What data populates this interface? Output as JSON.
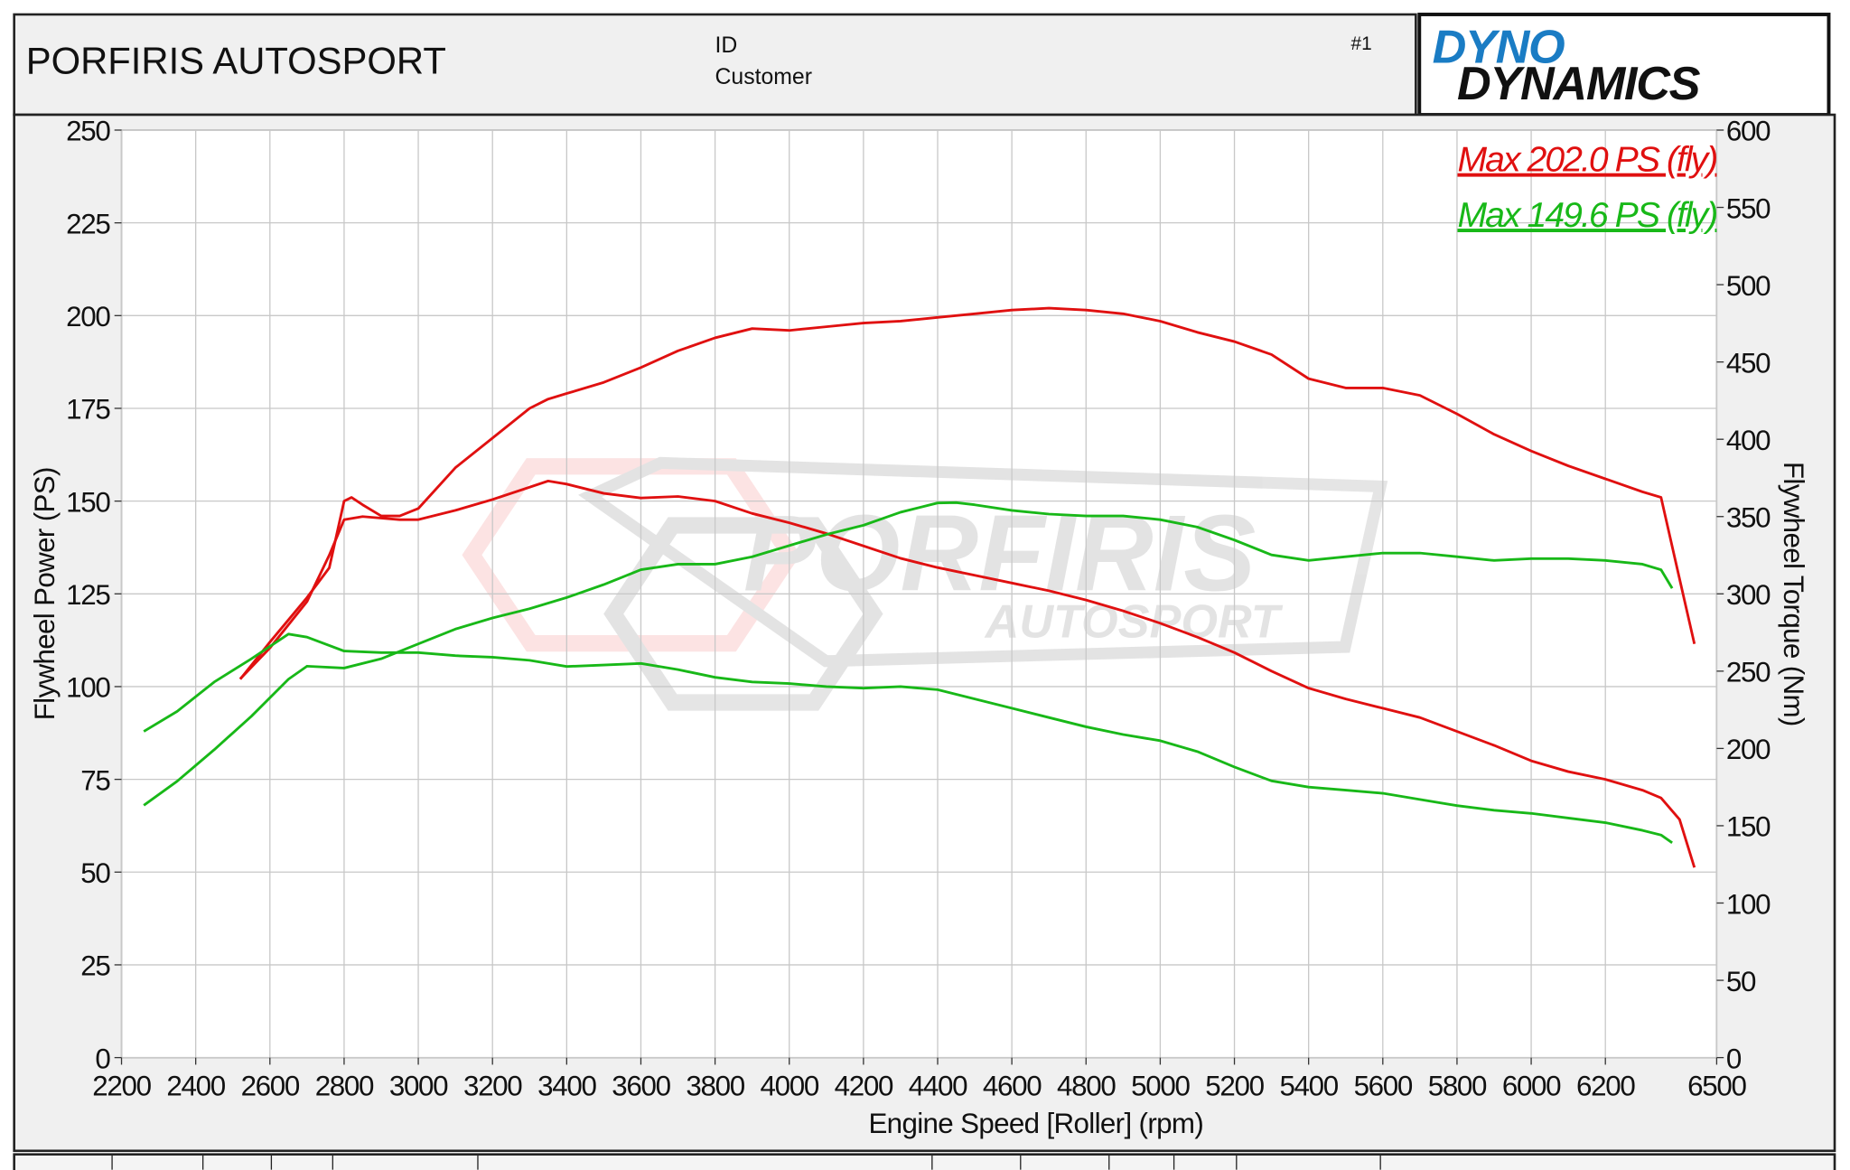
{
  "header": {
    "title": "PORFIRIS AUTOSPORT",
    "id_label": "ID",
    "customer_label": "Customer",
    "run": "#1"
  },
  "logo": {
    "line1": "DYNO",
    "line2": "DYNAMICS"
  },
  "watermark": {
    "line1": "PORFIRIS",
    "line2": "AUTOSPORT"
  },
  "chart_data": {
    "type": "line",
    "x_label": "Engine Speed [Roller] (rpm)",
    "y_label": "Flywheel Power (PS)",
    "y2_label": "Flywheel Torque (Nm)",
    "xlim": [
      2200,
      6500
    ],
    "xticks": [
      2200,
      2400,
      2600,
      2800,
      3000,
      3200,
      3400,
      3600,
      3800,
      4000,
      4200,
      4400,
      4600,
      4800,
      5000,
      5200,
      5400,
      5600,
      5800,
      6000,
      6200,
      6500
    ],
    "ylim": [
      0,
      250
    ],
    "yticks": [
      0,
      25,
      50,
      75,
      100,
      125,
      150,
      175,
      200,
      225,
      250
    ],
    "y2lim": [
      0,
      600
    ],
    "y2ticks": [
      0,
      50,
      100,
      150,
      200,
      250,
      300,
      350,
      400,
      450,
      500,
      550,
      600
    ],
    "grid": true,
    "legend": "top-right",
    "series": [
      {
        "name": "Max 202.0 PS (fly)",
        "color": "#e01010",
        "x": [
          2520,
          2600,
          2700,
          2760,
          2800,
          2820,
          2850,
          2900,
          2950,
          3000,
          3100,
          3200,
          3300,
          3350,
          3400,
          3500,
          3600,
          3700,
          3800,
          3900,
          4000,
          4100,
          4200,
          4300,
          4400,
          4500,
          4600,
          4700,
          4800,
          4900,
          5000,
          5100,
          5200,
          5300,
          5400,
          5500,
          5600,
          5700,
          5800,
          5900,
          6000,
          6100,
          6200,
          6300,
          6350,
          6400,
          6440
        ],
        "values": [
          102,
          112,
          124,
          132,
          150,
          151,
          149,
          146,
          146,
          148,
          159,
          167,
          175,
          177.5,
          179,
          182,
          186,
          190.5,
          194,
          196.5,
          196,
          197,
          198,
          198.5,
          199.5,
          200.5,
          201.5,
          202,
          201.5,
          200.5,
          198.5,
          195.5,
          193,
          189.5,
          183,
          180.5,
          180.5,
          178.5,
          173.5,
          168,
          163.5,
          159.5,
          156,
          152.5,
          151,
          129,
          111.5
        ]
      },
      {
        "color": "#e01010",
        "axis": "y2",
        "x": [
          2520,
          2600,
          2700,
          2760,
          2800,
          2850,
          2950,
          3000,
          3100,
          3200,
          3300,
          3350,
          3400,
          3500,
          3600,
          3700,
          3800,
          3900,
          4000,
          4100,
          4200,
          4300,
          4400,
          4500,
          4600,
          4700,
          4800,
          4900,
          5000,
          5100,
          5200,
          5300,
          5400,
          5500,
          5600,
          5700,
          5800,
          5900,
          6000,
          6100,
          6200,
          6300,
          6350,
          6400,
          6440
        ],
        "values": [
          245,
          265,
          295,
          325,
          348,
          350,
          348,
          348,
          354,
          361,
          369,
          373,
          371,
          365,
          362,
          363,
          360,
          352,
          346,
          339,
          331,
          323,
          317,
          312,
          307,
          302,
          296,
          289,
          281,
          272,
          262,
          250,
          239,
          232,
          226,
          220,
          211,
          202,
          192,
          185,
          180,
          173,
          168,
          154,
          123
        ]
      },
      {
        "name": "Max 149.6 PS (fly)",
        "color": "#18b818",
        "x": [
          2260,
          2350,
          2450,
          2550,
          2650,
          2700,
          2800,
          2900,
          3000,
          3100,
          3200,
          3300,
          3400,
          3500,
          3600,
          3700,
          3800,
          3900,
          4000,
          4100,
          4200,
          4300,
          4400,
          4450,
          4500,
          4600,
          4700,
          4800,
          4900,
          5000,
          5100,
          5200,
          5300,
          5400,
          5500,
          5600,
          5700,
          5800,
          5900,
          6000,
          6100,
          6200,
          6300,
          6350,
          6380
        ],
        "values": [
          68,
          74.5,
          83,
          92,
          102,
          105.5,
          105,
          107.5,
          111.5,
          115.5,
          118.5,
          121,
          124,
          127.5,
          131.5,
          133,
          133,
          135,
          138,
          141,
          143.5,
          147,
          149.5,
          149.6,
          149,
          147.5,
          146.5,
          146,
          146,
          145,
          143,
          139.5,
          135.5,
          134,
          135,
          136,
          136,
          135,
          134,
          134.5,
          134.5,
          134,
          133,
          131.5,
          126.5
        ]
      },
      {
        "color": "#18b818",
        "axis": "y2",
        "x": [
          2260,
          2350,
          2450,
          2550,
          2650,
          2700,
          2800,
          2900,
          3000,
          3100,
          3200,
          3300,
          3400,
          3500,
          3600,
          3700,
          3800,
          3900,
          4000,
          4100,
          4200,
          4300,
          4400,
          4500,
          4600,
          4700,
          4800,
          4900,
          5000,
          5100,
          5200,
          5300,
          5400,
          5500,
          5600,
          5700,
          5800,
          5900,
          6000,
          6100,
          6200,
          6300,
          6350,
          6380
        ],
        "values": [
          211,
          224,
          243,
          258,
          274,
          272,
          263,
          262,
          262,
          260,
          259,
          257,
          253,
          254,
          255,
          251,
          246,
          243,
          242,
          240,
          239,
          240,
          238,
          232,
          226,
          220,
          214,
          209,
          205,
          198,
          188,
          179,
          175,
          173,
          171,
          167,
          163,
          160,
          158,
          155,
          152,
          147,
          144,
          139
        ]
      }
    ]
  }
}
